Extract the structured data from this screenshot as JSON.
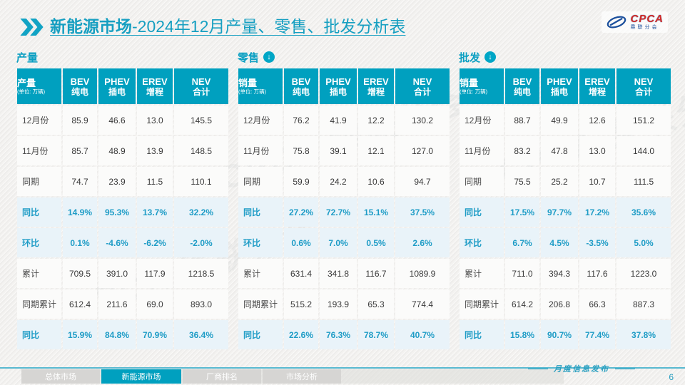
{
  "header": {
    "title_bold": "新能源市场",
    "title_rest": "-2024年12月产量、零售、批发分析表",
    "logo": {
      "name": "CPCA",
      "subtitle": "乘联分会"
    }
  },
  "columns": [
    {
      "en": "BEV",
      "zh": "纯电"
    },
    {
      "en": "PHEV",
      "zh": "插电"
    },
    {
      "en": "EREV",
      "zh": "增程"
    },
    {
      "en": "NEV",
      "zh": "合计"
    }
  ],
  "row_labels": [
    "12月份",
    "11月份",
    "同期",
    "同比",
    "环比",
    "累计",
    "同期累计",
    "同比"
  ],
  "highlight_rows": [
    3,
    4,
    7
  ],
  "tables": [
    {
      "section": "产量",
      "arrow": false,
      "corner_title": "产量",
      "corner_unit": "(单位: 万辆)",
      "rows": [
        [
          "85.9",
          "46.6",
          "13.0",
          "145.5"
        ],
        [
          "85.7",
          "48.9",
          "13.9",
          "148.5"
        ],
        [
          "74.7",
          "23.9",
          "11.5",
          "110.1"
        ],
        [
          "14.9%",
          "95.3%",
          "13.7%",
          "32.2%"
        ],
        [
          "0.1%",
          "-4.6%",
          "-6.2%",
          "-2.0%"
        ],
        [
          "709.5",
          "391.0",
          "117.9",
          "1218.5"
        ],
        [
          "612.4",
          "211.6",
          "69.0",
          "893.0"
        ],
        [
          "15.9%",
          "84.8%",
          "70.9%",
          "36.4%"
        ]
      ]
    },
    {
      "section": "零售",
      "arrow": true,
      "corner_title": "销量",
      "corner_unit": "(单位: 万辆)",
      "rows": [
        [
          "76.2",
          "41.9",
          "12.2",
          "130.2"
        ],
        [
          "75.8",
          "39.1",
          "12.1",
          "127.0"
        ],
        [
          "59.9",
          "24.2",
          "10.6",
          "94.7"
        ],
        [
          "27.2%",
          "72.7%",
          "15.1%",
          "37.5%"
        ],
        [
          "0.6%",
          "7.0%",
          "0.5%",
          "2.6%"
        ],
        [
          "631.4",
          "341.8",
          "116.7",
          "1089.9"
        ],
        [
          "515.2",
          "193.9",
          "65.3",
          "774.4"
        ],
        [
          "22.6%",
          "76.3%",
          "78.7%",
          "40.7%"
        ]
      ]
    },
    {
      "section": "批发",
      "arrow": true,
      "corner_title": "销量",
      "corner_unit": "(单位: 万辆)",
      "rows": [
        [
          "88.7",
          "49.9",
          "12.6",
          "151.2"
        ],
        [
          "83.2",
          "47.8",
          "13.0",
          "144.0"
        ],
        [
          "75.5",
          "25.2",
          "10.7",
          "111.5"
        ],
        [
          "17.5%",
          "97.7%",
          "17.2%",
          "35.6%"
        ],
        [
          "6.7%",
          "4.5%",
          "-3.5%",
          "5.0%"
        ],
        [
          "711.0",
          "394.3",
          "117.6",
          "1223.0"
        ],
        [
          "614.2",
          "206.8",
          "66.3",
          "887.3"
        ],
        [
          "15.8%",
          "90.7%",
          "77.4%",
          "37.8%"
        ]
      ]
    }
  ],
  "footer": {
    "tabs": [
      {
        "label": "总体市场",
        "active": false
      },
      {
        "label": "新能源市场",
        "active": true
      },
      {
        "label": "厂商排名",
        "active": false
      },
      {
        "label": "市场分析",
        "active": false
      }
    ],
    "publication": "月度信息发布",
    "page": "6"
  },
  "watermark": "CPCA 乘联分会"
}
